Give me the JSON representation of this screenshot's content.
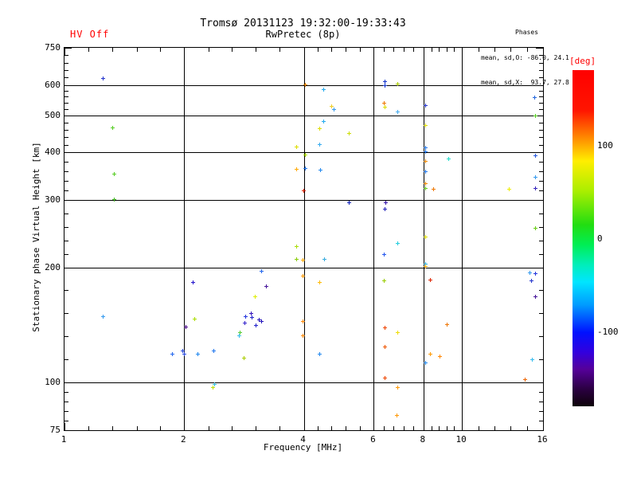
{
  "header": {
    "hv_status": "HV Off",
    "title_line1": "Tromsø 20131123 19:32:00-19:33:43",
    "title_line2": "RwPretec (8p)",
    "phases_title": "Phases",
    "phases_line_o": "mean, sd,O: -86.0, 24.1",
    "phases_line_x": "mean, sd,X:  93.7, 27.8"
  },
  "colors": {
    "annotation_red": "#ff0000",
    "axis_color": "#000000",
    "background": "#ffffff"
  },
  "chart_data": {
    "type": "scatter",
    "title": "Tromsø 20131123 19:32:00-19:33:43",
    "subtitle": "RwPretec (8p)",
    "xlabel": "Frequency [MHz]",
    "ylabel": "Stationary phase Virtual Height [km]",
    "x_scale": "log",
    "y_scale": "log",
    "xlim": [
      1,
      16
    ],
    "ylim": [
      75,
      750
    ],
    "grid": true,
    "x_major_ticks": [
      1,
      2,
      4,
      6,
      8,
      10,
      16
    ],
    "y_major_ticks": [
      75,
      100,
      200,
      300,
      400,
      500,
      600,
      750
    ],
    "x_gridlines": [
      2,
      4,
      6,
      8,
      10
    ],
    "y_gridlines": [
      100,
      200,
      300,
      400,
      500,
      600
    ],
    "x_minor_ticks": [
      1.15,
      1.32,
      1.52,
      1.74,
      2.3,
      2.64,
      3.03,
      3.48,
      4.34,
      4.7,
      5.1,
      5.53,
      6.36,
      6.73,
      7.13,
      7.55,
      8.37,
      8.75,
      9.15,
      9.56,
      10.99,
      12.07,
      13.26,
      14.57
    ],
    "y_minor_ticks": [
      79.4,
      84.1,
      89.1,
      94.4,
      114.9,
      132,
      151.6,
      174.1,
      216.9,
      235.2,
      255.1,
      276.7,
      317.8,
      336.6,
      356.5,
      377.6,
      418.3,
      437.3,
      457.3,
      478.2,
      518.9,
      538.6,
      559,
      580.2,
      627.4,
      656,
      686,
      717.3
    ],
    "colorbar": {
      "label": "[deg]",
      "range": [
        180,
        -180
      ],
      "ticks": [
        100,
        0,
        -100
      ],
      "stops": [
        [
          0.0,
          "#ff0000"
        ],
        [
          0.12,
          "#ff1500"
        ],
        [
          0.2,
          "#ff8800"
        ],
        [
          0.27,
          "#ffee00"
        ],
        [
          0.36,
          "#aaee00"
        ],
        [
          0.46,
          "#22dd11"
        ],
        [
          0.52,
          "#00ee55"
        ],
        [
          0.58,
          "#00eebb"
        ],
        [
          0.63,
          "#00e5ff"
        ],
        [
          0.7,
          "#0099ff"
        ],
        [
          0.78,
          "#0011ff"
        ],
        [
          0.84,
          "#3300dd"
        ],
        [
          0.89,
          "#550099"
        ],
        [
          0.95,
          "#2a0040"
        ],
        [
          1.0,
          "#0d0208"
        ]
      ]
    },
    "points": [
      [
        1.25,
        625,
        "#2233cc"
      ],
      [
        1.32,
        464,
        "#55cc22"
      ],
      [
        1.33,
        352,
        "#55cc22"
      ],
      [
        1.33,
        302,
        "#44bb22"
      ],
      [
        4.03,
        601,
        "#ee8800"
      ],
      [
        4.48,
        584,
        "#22aaee"
      ],
      [
        4.68,
        529,
        "#eecc22"
      ],
      [
        4.76,
        519,
        "#3399ee"
      ],
      [
        4.48,
        483,
        "#22aaee"
      ],
      [
        4.38,
        463,
        "#dddd00"
      ],
      [
        5.19,
        449,
        "#ccdd00"
      ],
      [
        3.83,
        414,
        "#dddd00"
      ],
      [
        4.38,
        419,
        "#33aaee"
      ],
      [
        4.03,
        395,
        "#aadd00"
      ],
      [
        3.83,
        362,
        "#ffaa00"
      ],
      [
        4.03,
        364,
        "#2277ee"
      ],
      [
        4.4,
        360,
        "#2288ee"
      ],
      [
        3.99,
        318,
        "#dd2200"
      ],
      [
        5.19,
        296,
        "#1122bb"
      ],
      [
        6.4,
        613,
        "#1133cc"
      ],
      [
        6.4,
        598,
        "#1133cc"
      ],
      [
        6.88,
        604,
        "#aacc00"
      ],
      [
        6.37,
        539,
        "#ee7700"
      ],
      [
        6.4,
        527,
        "#dddd00"
      ],
      [
        6.88,
        512,
        "#44aaee"
      ],
      [
        8.08,
        530,
        "#2233cc"
      ],
      [
        15.2,
        558,
        "#2266dd"
      ],
      [
        15.3,
        500,
        "#55cc22"
      ],
      [
        8.08,
        472,
        "#dddd00"
      ],
      [
        8.08,
        412,
        "#2277ee"
      ],
      [
        8.08,
        402,
        "#2277ee"
      ],
      [
        15.3,
        393,
        "#2255dd"
      ],
      [
        8.08,
        380,
        "#ee8800"
      ],
      [
        9.25,
        385,
        "#22ddcc"
      ],
      [
        8.08,
        357,
        "#2277ee"
      ],
      [
        15.3,
        345,
        "#3399ee"
      ],
      [
        8.08,
        332,
        "#ee8800"
      ],
      [
        8.08,
        323,
        "#66cc22"
      ],
      [
        8.47,
        321,
        "#ee7700"
      ],
      [
        13.1,
        321,
        "#eeee00"
      ],
      [
        15.3,
        323,
        "#3322bb"
      ],
      [
        6.43,
        296,
        "#3311aa"
      ],
      [
        6.4,
        285,
        "#2222bb"
      ],
      [
        8.08,
        241,
        "#dddd00"
      ],
      [
        15.3,
        254,
        "#66cc11"
      ],
      [
        1.25,
        149,
        "#3399ee"
      ],
      [
        2.1,
        183,
        "#2211cc"
      ],
      [
        2.12,
        147,
        "#aadd00"
      ],
      [
        2.02,
        140,
        "#440088"
      ],
      [
        1.86,
        119,
        "#2266ee"
      ],
      [
        1.98,
        121,
        "#2244dd"
      ],
      [
        2.0,
        119,
        "#2244dd"
      ],
      [
        2.16,
        119,
        "#2288ee"
      ],
      [
        2.37,
        121,
        "#2277ee"
      ],
      [
        2.38,
        99,
        "#33bbdd"
      ],
      [
        2.36,
        97,
        "#bbdd00"
      ],
      [
        3.83,
        227,
        "#aadd00"
      ],
      [
        3.83,
        210,
        "#88cc00"
      ],
      [
        3.97,
        209,
        "#ffaa00"
      ],
      [
        4.5,
        210,
        "#33aadd"
      ],
      [
        3.12,
        196,
        "#2266ee"
      ],
      [
        3.97,
        190,
        "#ff9900"
      ],
      [
        4.38,
        183,
        "#ffbb00"
      ],
      [
        3.21,
        179,
        "#441199"
      ],
      [
        3.01,
        168,
        "#ddee00"
      ],
      [
        2.85,
        149,
        "#2233dd"
      ],
      [
        2.94,
        152,
        "#3311bb"
      ],
      [
        2.96,
        148,
        "#2222cc"
      ],
      [
        3.08,
        146,
        "#2211bb"
      ],
      [
        3.13,
        145,
        "#2211bb"
      ],
      [
        3.02,
        141,
        "#2222cc"
      ],
      [
        2.84,
        143,
        "#3322cc"
      ],
      [
        2.76,
        135,
        "#55cc33"
      ],
      [
        2.75,
        133,
        "#33bbee"
      ],
      [
        3.97,
        145,
        "#ff8800"
      ],
      [
        3.97,
        133,
        "#ff8800"
      ],
      [
        4.38,
        119,
        "#2288ee"
      ],
      [
        2.83,
        116,
        "#aacc00"
      ],
      [
        6.88,
        232,
        "#22ccdd"
      ],
      [
        6.37,
        217,
        "#2255ee"
      ],
      [
        8.08,
        204,
        "#22aadd"
      ],
      [
        8.08,
        201,
        "#ffaa00"
      ],
      [
        6.37,
        185,
        "#99cc00"
      ],
      [
        8.31,
        186,
        "#dd2200"
      ],
      [
        14.8,
        194,
        "#3399ee"
      ],
      [
        15.3,
        193,
        "#2233dd"
      ],
      [
        14.9,
        185,
        "#2233cc"
      ],
      [
        15.3,
        168,
        "#441199"
      ],
      [
        9.17,
        142,
        "#ee7700"
      ],
      [
        6.4,
        139,
        "#ee4400"
      ],
      [
        6.88,
        135,
        "#eedd00"
      ],
      [
        6.4,
        124,
        "#ee5500"
      ],
      [
        8.31,
        119,
        "#ff9900"
      ],
      [
        8.79,
        117,
        "#ff8800"
      ],
      [
        8.08,
        113,
        "#2288ee"
      ],
      [
        15.0,
        115,
        "#33bbee"
      ],
      [
        6.4,
        103,
        "#ee4400"
      ],
      [
        14.4,
        102,
        "#ee6600"
      ],
      [
        6.88,
        97,
        "#ff9900"
      ],
      [
        6.85,
        82,
        "#ff9900"
      ]
    ]
  }
}
